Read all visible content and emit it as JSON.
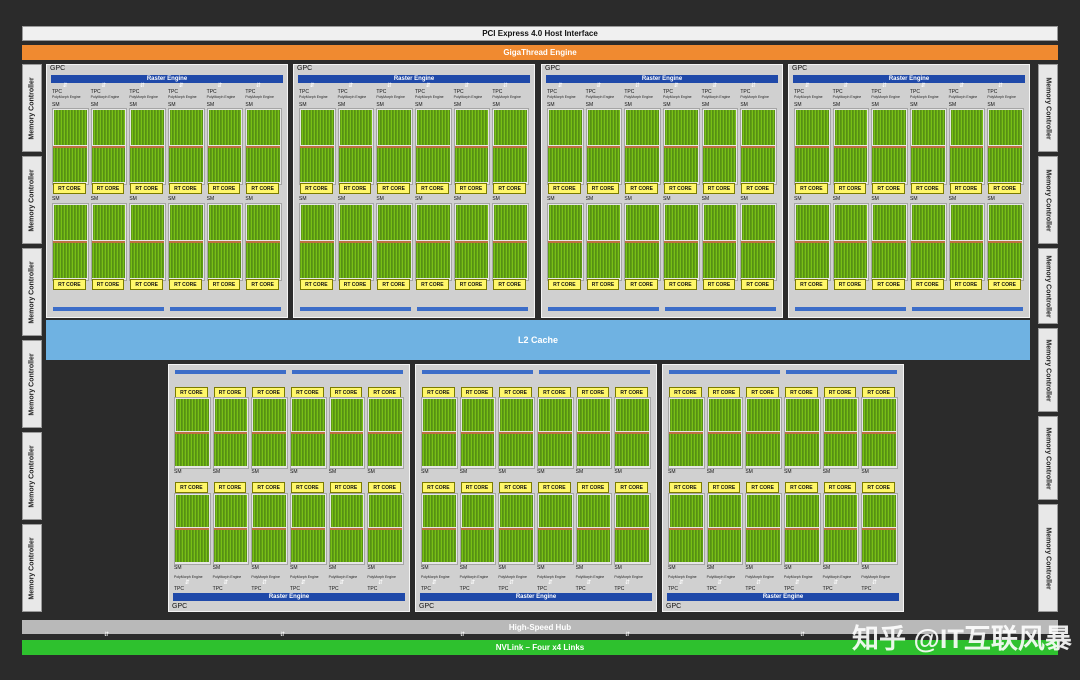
{
  "titles": {
    "pcie": "PCI Express 4.0 Host Interface",
    "gigathread": "GigaThread Engine",
    "l2": "L2 Cache",
    "hub": "High-Speed Hub",
    "nvlink": "NVLink – Four x4 Links"
  },
  "memory_controller_label": "Memory Controller",
  "gpc_label": "GPC",
  "raster_label": "Raster Engine",
  "tpc_label": "TPC",
  "polymorph_label": "PolyMorph Engine",
  "sm_label": "SM",
  "rt_core_label": "RT CORE",
  "watermark": "知乎 @IT互联风暴",
  "colors": {
    "gigathread": "#f08a30",
    "l2": "#6fb2e2",
    "nvlink": "#2ec12e",
    "raster": "#1f49a9",
    "rt_core": "#fff76a",
    "cuda_cores": "#82cd18"
  }
}
